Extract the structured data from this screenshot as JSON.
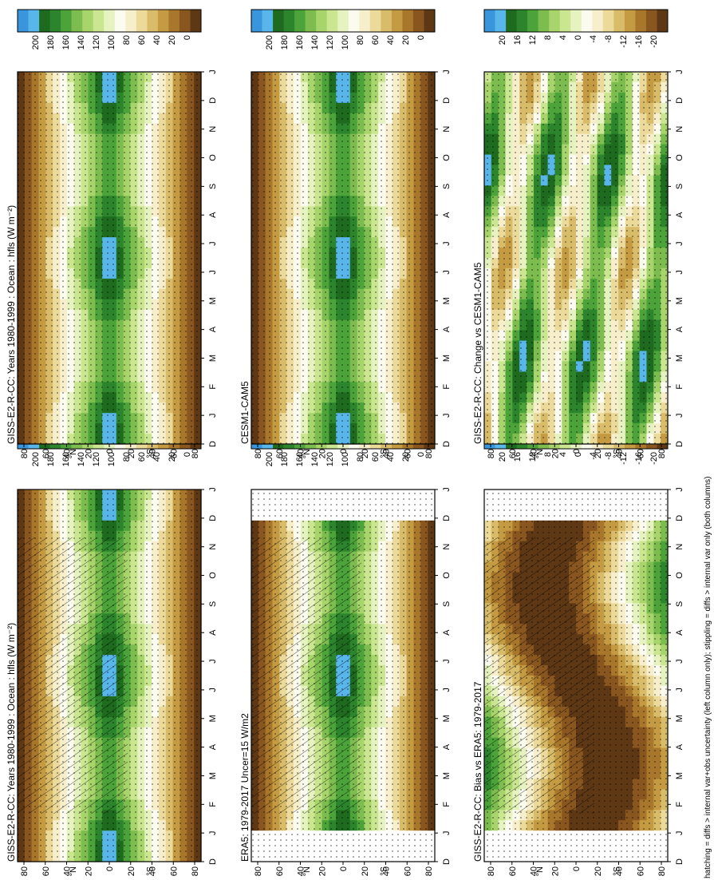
{
  "footnote": "hatching = diffs > internal var+obs uncertainty (left column only); stippling = diffs > internal var only (both columns)",
  "colors": {
    "fill_ramp": [
      "#3a96dc",
      "#58b6ea",
      "#1e6a1e",
      "#2c852c",
      "#4ca33a",
      "#7dbd50",
      "#a8d46c",
      "#cbe690",
      "#e6f3c0",
      "#fbfbef",
      "#f7efcb",
      "#ecda9b",
      "#d8bc69",
      "#c49b43",
      "#a9772b",
      "#8a5620",
      "#5e3815"
    ],
    "bias_ramp": [
      "#3a96dc",
      "#58b6ea",
      "#1e6a1e",
      "#2c852c",
      "#4ca33a",
      "#7dbd50",
      "#a8d46c",
      "#cbe690",
      "#e6f3c0",
      "#fbfbef",
      "#f7efcb",
      "#ecda9b",
      "#d8bc69",
      "#c49b43",
      "#a9772b",
      "#8a5620",
      "#5e3815"
    ]
  },
  "chart_data": [
    {
      "id": "panel-model-left",
      "type": "heatmap",
      "title": "GISS-E2-R-CC: Years 1980-1999 : Ocean : hfls (W m⁻²)",
      "x_ticks": [
        "D",
        "J",
        "F",
        "M",
        "A",
        "M",
        "J",
        "J",
        "A",
        "S",
        "O",
        "N",
        "D",
        "J"
      ],
      "y_ticks": [
        "80",
        "60",
        "40",
        "20",
        "0",
        "20",
        "40",
        "60",
        "80"
      ],
      "y_hemi": [
        "N",
        "S"
      ],
      "colorbar": [
        "200",
        "180",
        "160",
        "140",
        "120",
        "100",
        "80",
        "60",
        "40",
        "20",
        "0"
      ],
      "overlay": "hatching+stippling"
    },
    {
      "id": "panel-model-right",
      "type": "heatmap",
      "title": "GISS-E2-R-CC: Years 1980-1999 : Ocean : hfls (W m⁻²)",
      "x_ticks": [
        "D",
        "J",
        "F",
        "M",
        "A",
        "M",
        "J",
        "J",
        "A",
        "S",
        "O",
        "N",
        "D",
        "J"
      ],
      "y_ticks": [
        "80",
        "60",
        "40",
        "20",
        "0",
        "20",
        "40",
        "60",
        "80"
      ],
      "y_hemi": [
        "N",
        "S"
      ],
      "colorbar": [
        "200",
        "180",
        "160",
        "140",
        "120",
        "100",
        "80",
        "60",
        "40",
        "20",
        "0"
      ],
      "overlay": "stippling"
    },
    {
      "id": "panel-obs",
      "type": "heatmap",
      "title": "ERA5: 1979-2017 Uncer=15 W/m2",
      "x_ticks": [
        "D",
        "J",
        "F",
        "M",
        "A",
        "M",
        "J",
        "J",
        "A",
        "S",
        "O",
        "N",
        "D",
        "J"
      ],
      "y_ticks": [
        "80",
        "60",
        "40",
        "20",
        "0",
        "20",
        "40",
        "60",
        "80"
      ],
      "y_hemi": [
        "N",
        "S"
      ],
      "colorbar": [
        "200",
        "180",
        "160",
        "140",
        "120",
        "100",
        "80",
        "60",
        "40",
        "20",
        "0"
      ],
      "overlay": "hatching+stippling"
    },
    {
      "id": "panel-ref-model",
      "type": "heatmap",
      "title": "CESM1-CAM5",
      "x_ticks": [
        "D",
        "J",
        "F",
        "M",
        "A",
        "M",
        "J",
        "J",
        "A",
        "S",
        "O",
        "N",
        "D",
        "J"
      ],
      "y_ticks": [
        "80",
        "60",
        "40",
        "20",
        "0",
        "20",
        "40",
        "60",
        "80"
      ],
      "y_hemi": [
        "N",
        "S"
      ],
      "colorbar": [
        "200",
        "180",
        "160",
        "140",
        "120",
        "100",
        "80",
        "60",
        "40",
        "20",
        "0"
      ],
      "overlay": "stippling"
    },
    {
      "id": "panel-bias",
      "type": "heatmap",
      "title": "GISS-E2-R-CC: Bias vs ERA5: 1979-2017",
      "x_ticks": [
        "D",
        "J",
        "F",
        "M",
        "A",
        "M",
        "J",
        "J",
        "A",
        "S",
        "O",
        "N",
        "D",
        "J"
      ],
      "y_ticks": [
        "80",
        "60",
        "40",
        "20",
        "0",
        "20",
        "40",
        "60",
        "80"
      ],
      "y_hemi": [
        "N",
        "S"
      ],
      "colorbar": [
        "20",
        "16",
        "12",
        "8",
        "4",
        "0",
        "-4",
        "-8",
        "-12",
        "-16",
        "-20"
      ],
      "overlay": "hatching+stippling"
    },
    {
      "id": "panel-change",
      "type": "heatmap",
      "title": "GISS-E2-R-CC: Change vs CESM1-CAM5",
      "x_ticks": [
        "D",
        "J",
        "F",
        "M",
        "A",
        "M",
        "J",
        "J",
        "A",
        "S",
        "O",
        "N",
        "D",
        "J"
      ],
      "y_ticks": [
        "80",
        "60",
        "40",
        "20",
        "0",
        "20",
        "40",
        "60",
        "80"
      ],
      "y_hemi": [
        "N",
        "S"
      ],
      "colorbar": [
        "20",
        "16",
        "12",
        "8",
        "4",
        "0",
        "-4",
        "-8",
        "-12",
        "-16",
        "-20"
      ],
      "overlay": "stippling"
    }
  ]
}
